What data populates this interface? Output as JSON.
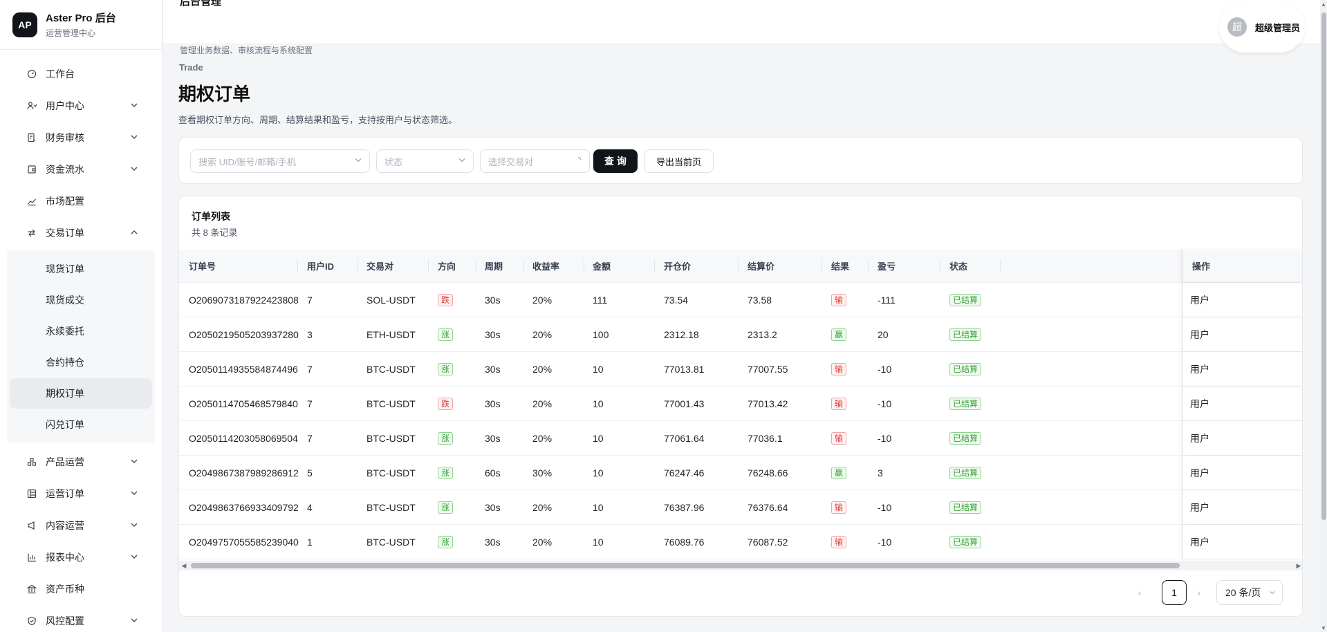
{
  "brand": {
    "logo": "AP",
    "title": "Aster Pro 后台",
    "subtitle": "运营管理中心"
  },
  "header": {
    "title_cut": "后台管理",
    "subtitle": "管理业务数据、审核流程与系统配置",
    "user_avatar": "超",
    "user_name": "超级管理员"
  },
  "sidebar": {
    "items": [
      {
        "label": "工作台",
        "icon": "dashboard-icon",
        "has_chevron": false
      },
      {
        "label": "用户中心",
        "icon": "users-icon",
        "has_chevron": true
      },
      {
        "label": "财务审核",
        "icon": "audit-icon",
        "has_chevron": true
      },
      {
        "label": "资金流水",
        "icon": "wallet-icon",
        "has_chevron": true
      },
      {
        "label": "市场配置",
        "icon": "chart-line-icon",
        "has_chevron": false
      },
      {
        "label": "交易订单",
        "icon": "swap-icon",
        "has_chevron": true,
        "expanded": true
      },
      {
        "label": "产品运营",
        "icon": "product-icon",
        "has_chevron": true
      },
      {
        "label": "运营订单",
        "icon": "order-grid-icon",
        "has_chevron": true
      },
      {
        "label": "内容运营",
        "icon": "megaphone-icon",
        "has_chevron": true
      },
      {
        "label": "报表中心",
        "icon": "bar-chart-icon",
        "has_chevron": true
      },
      {
        "label": "资产币种",
        "icon": "bank-icon",
        "has_chevron": false
      },
      {
        "label": "风控配置",
        "icon": "shield-icon",
        "has_chevron": true
      }
    ],
    "trade_children": [
      "现货订单",
      "现货成交",
      "永续委托",
      "合约持仓",
      "期权订单",
      "闪兑订单"
    ],
    "active_child": "期权订单"
  },
  "page": {
    "breadcrumb": "Trade",
    "title": "期权订单",
    "description": "查看期权订单方向、周期、结算结果和盈亏，支持按用户与状态筛选。"
  },
  "filters": {
    "search_placeholder": "搜索 UID/账号/邮箱/手机",
    "status_placeholder": "状态",
    "pair_placeholder": "选择交易对",
    "query_label": "查 询",
    "export_label": "导出当前页"
  },
  "table": {
    "title": "订单列表",
    "count_text": "共 8 条记录",
    "columns": [
      "订单号",
      "用户ID",
      "交易对",
      "方向",
      "周期",
      "收益率",
      "金额",
      "开仓价",
      "结算价",
      "结果",
      "盈亏",
      "状态",
      "操作"
    ],
    "rows": [
      [
        "O2069073187922423808",
        "7",
        "SOL-USDT",
        "跌",
        "30s",
        "20%",
        "111",
        "73.54",
        "73.58",
        "输",
        "-111",
        "已结算",
        "用户"
      ],
      [
        "O2050219505203937280",
        "3",
        "ETH-USDT",
        "涨",
        "30s",
        "20%",
        "100",
        "2312.18",
        "2313.2",
        "赢",
        "20",
        "已结算",
        "用户"
      ],
      [
        "O2050114935584874496",
        "7",
        "BTC-USDT",
        "涨",
        "30s",
        "20%",
        "10",
        "77013.81",
        "77007.55",
        "输",
        "-10",
        "已结算",
        "用户"
      ],
      [
        "O2050114705468579840",
        "7",
        "BTC-USDT",
        "跌",
        "30s",
        "20%",
        "10",
        "77001.43",
        "77013.42",
        "输",
        "-10",
        "已结算",
        "用户"
      ],
      [
        "O2050114203058069504",
        "7",
        "BTC-USDT",
        "涨",
        "30s",
        "20%",
        "10",
        "77061.64",
        "77036.1",
        "输",
        "-10",
        "已结算",
        "用户"
      ],
      [
        "O2049867387989286912",
        "5",
        "BTC-USDT",
        "涨",
        "60s",
        "30%",
        "10",
        "76247.46",
        "76248.66",
        "赢",
        "3",
        "已结算",
        "用户"
      ],
      [
        "O2049863766933409792",
        "4",
        "BTC-USDT",
        "涨",
        "30s",
        "20%",
        "10",
        "76387.96",
        "76376.64",
        "输",
        "-10",
        "已结算",
        "用户"
      ],
      [
        "O2049757055585239040",
        "1",
        "BTC-USDT",
        "涨",
        "30s",
        "20%",
        "10",
        "76089.76",
        "76087.52",
        "输",
        "-10",
        "已结算",
        "用户"
      ]
    ]
  },
  "pagination": {
    "current": "1",
    "page_size": "20 条/页"
  },
  "colors": {
    "accent": "#111418",
    "up_green": "#3aa339",
    "down_red": "#e03b3b"
  }
}
